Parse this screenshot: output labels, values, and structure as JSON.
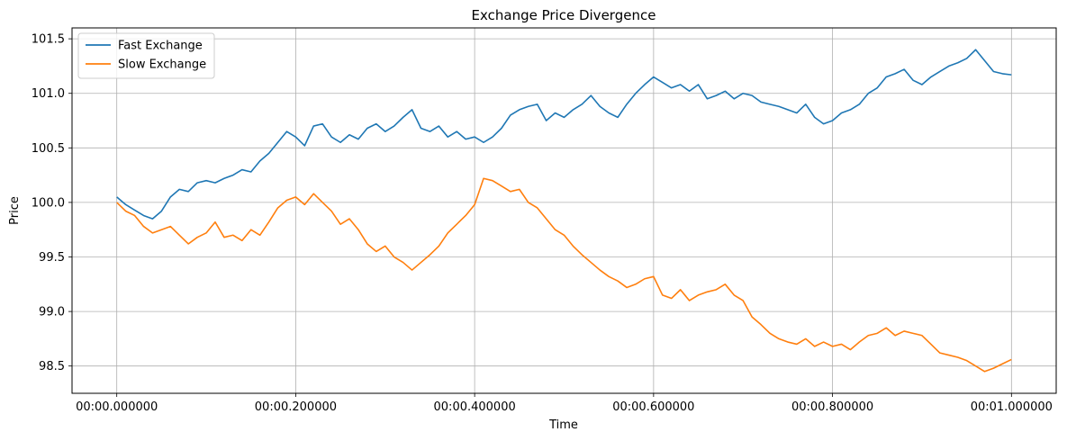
{
  "chart_data": {
    "type": "line",
    "title": "Exchange Price Divergence",
    "xlabel": "Time",
    "ylabel": "Price",
    "xlim": [
      -0.05,
      1.05
    ],
    "ylim": [
      98.25,
      101.6
    ],
    "x_ticks": [
      0.0,
      0.2,
      0.4,
      0.6,
      0.8,
      1.0
    ],
    "x_tick_labels": [
      "00:00.000000",
      "00:00.200000",
      "00:00.400000",
      "00:00.600000",
      "00:00.800000",
      "00:01.000000"
    ],
    "y_ticks": [
      98.5,
      99.0,
      99.5,
      100.0,
      100.5,
      101.0,
      101.5
    ],
    "y_tick_labels": [
      "98.5",
      "99.0",
      "99.5",
      "100.0",
      "100.5",
      "101.0",
      "101.5"
    ],
    "grid": true,
    "legend_position": "top-left",
    "series": [
      {
        "name": "Fast Exchange",
        "color": "#1f77b4",
        "x": [
          0.0,
          0.01,
          0.02,
          0.03,
          0.04,
          0.05,
          0.06,
          0.07,
          0.08,
          0.09,
          0.1,
          0.11,
          0.12,
          0.13,
          0.14,
          0.15,
          0.16,
          0.17,
          0.18,
          0.19,
          0.2,
          0.21,
          0.22,
          0.23,
          0.24,
          0.25,
          0.26,
          0.27,
          0.28,
          0.29,
          0.3,
          0.31,
          0.32,
          0.33,
          0.34,
          0.35,
          0.36,
          0.37,
          0.38,
          0.39,
          0.4,
          0.41,
          0.42,
          0.43,
          0.44,
          0.45,
          0.46,
          0.47,
          0.48,
          0.49,
          0.5,
          0.51,
          0.52,
          0.53,
          0.54,
          0.55,
          0.56,
          0.57,
          0.58,
          0.59,
          0.6,
          0.61,
          0.62,
          0.63,
          0.64,
          0.65,
          0.66,
          0.67,
          0.68,
          0.69,
          0.7,
          0.71,
          0.72,
          0.73,
          0.74,
          0.75,
          0.76,
          0.77,
          0.78,
          0.79,
          0.8,
          0.81,
          0.82,
          0.83,
          0.84,
          0.85,
          0.86,
          0.87,
          0.88,
          0.89,
          0.9,
          0.91,
          0.92,
          0.93,
          0.94,
          0.95,
          0.96,
          0.97,
          0.98,
          0.99,
          1.0
        ],
        "y": [
          100.05,
          99.98,
          99.93,
          99.88,
          99.85,
          99.92,
          100.05,
          100.12,
          100.1,
          100.18,
          100.2,
          100.18,
          100.22,
          100.25,
          100.3,
          100.28,
          100.38,
          100.45,
          100.55,
          100.65,
          100.6,
          100.52,
          100.7,
          100.72,
          100.6,
          100.55,
          100.62,
          100.58,
          100.68,
          100.72,
          100.65,
          100.7,
          100.78,
          100.85,
          100.68,
          100.65,
          100.7,
          100.6,
          100.65,
          100.58,
          100.6,
          100.55,
          100.6,
          100.68,
          100.8,
          100.85,
          100.88,
          100.9,
          100.75,
          100.82,
          100.78,
          100.85,
          100.9,
          100.98,
          100.88,
          100.82,
          100.78,
          100.9,
          101.0,
          101.08,
          101.15,
          101.1,
          101.05,
          101.08,
          101.02,
          101.08,
          100.95,
          100.98,
          101.02,
          100.95,
          101.0,
          100.98,
          100.92,
          100.9,
          100.88,
          100.85,
          100.82,
          100.9,
          100.78,
          100.72,
          100.75,
          100.82,
          100.85,
          100.9,
          101.0,
          101.05,
          101.15,
          101.18,
          101.22,
          101.12,
          101.08,
          101.15,
          101.2,
          101.25,
          101.28,
          101.32,
          101.4,
          101.3,
          101.2,
          101.18,
          101.17
        ]
      },
      {
        "name": "Slow Exchange",
        "color": "#ff7f0e",
        "x": [
          0.0,
          0.01,
          0.02,
          0.03,
          0.04,
          0.05,
          0.06,
          0.07,
          0.08,
          0.09,
          0.1,
          0.11,
          0.12,
          0.13,
          0.14,
          0.15,
          0.16,
          0.17,
          0.18,
          0.19,
          0.2,
          0.21,
          0.22,
          0.23,
          0.24,
          0.25,
          0.26,
          0.27,
          0.28,
          0.29,
          0.3,
          0.31,
          0.32,
          0.33,
          0.34,
          0.35,
          0.36,
          0.37,
          0.38,
          0.39,
          0.4,
          0.41,
          0.42,
          0.43,
          0.44,
          0.45,
          0.46,
          0.47,
          0.48,
          0.49,
          0.5,
          0.51,
          0.52,
          0.53,
          0.54,
          0.55,
          0.56,
          0.57,
          0.58,
          0.59,
          0.6,
          0.61,
          0.62,
          0.63,
          0.64,
          0.65,
          0.66,
          0.67,
          0.68,
          0.69,
          0.7,
          0.71,
          0.72,
          0.73,
          0.74,
          0.75,
          0.76,
          0.77,
          0.78,
          0.79,
          0.8,
          0.81,
          0.82,
          0.83,
          0.84,
          0.85,
          0.86,
          0.87,
          0.88,
          0.89,
          0.9,
          0.91,
          0.92,
          0.93,
          0.94,
          0.95,
          0.96,
          0.97,
          0.98,
          0.99,
          1.0
        ],
        "y": [
          100.0,
          99.92,
          99.88,
          99.78,
          99.72,
          99.75,
          99.78,
          99.7,
          99.62,
          99.68,
          99.72,
          99.82,
          99.68,
          99.7,
          99.65,
          99.75,
          99.7,
          99.82,
          99.95,
          100.02,
          100.05,
          99.98,
          100.08,
          100.0,
          99.92,
          99.8,
          99.85,
          99.75,
          99.62,
          99.55,
          99.6,
          99.5,
          99.45,
          99.38,
          99.45,
          99.52,
          99.6,
          99.72,
          99.8,
          99.88,
          99.98,
          100.22,
          100.2,
          100.15,
          100.1,
          100.12,
          100.0,
          99.95,
          99.85,
          99.75,
          99.7,
          99.6,
          99.52,
          99.45,
          99.38,
          99.32,
          99.28,
          99.22,
          99.25,
          99.3,
          99.32,
          99.15,
          99.12,
          99.2,
          99.1,
          99.15,
          99.18,
          99.2,
          99.25,
          99.15,
          99.1,
          98.95,
          98.88,
          98.8,
          98.75,
          98.72,
          98.7,
          98.75,
          98.68,
          98.72,
          98.68,
          98.7,
          98.65,
          98.72,
          98.78,
          98.8,
          98.85,
          98.78,
          98.82,
          98.8,
          98.78,
          98.7,
          98.62,
          98.6,
          98.58,
          98.55,
          98.5,
          98.45,
          98.48,
          98.52,
          98.56
        ]
      }
    ]
  }
}
